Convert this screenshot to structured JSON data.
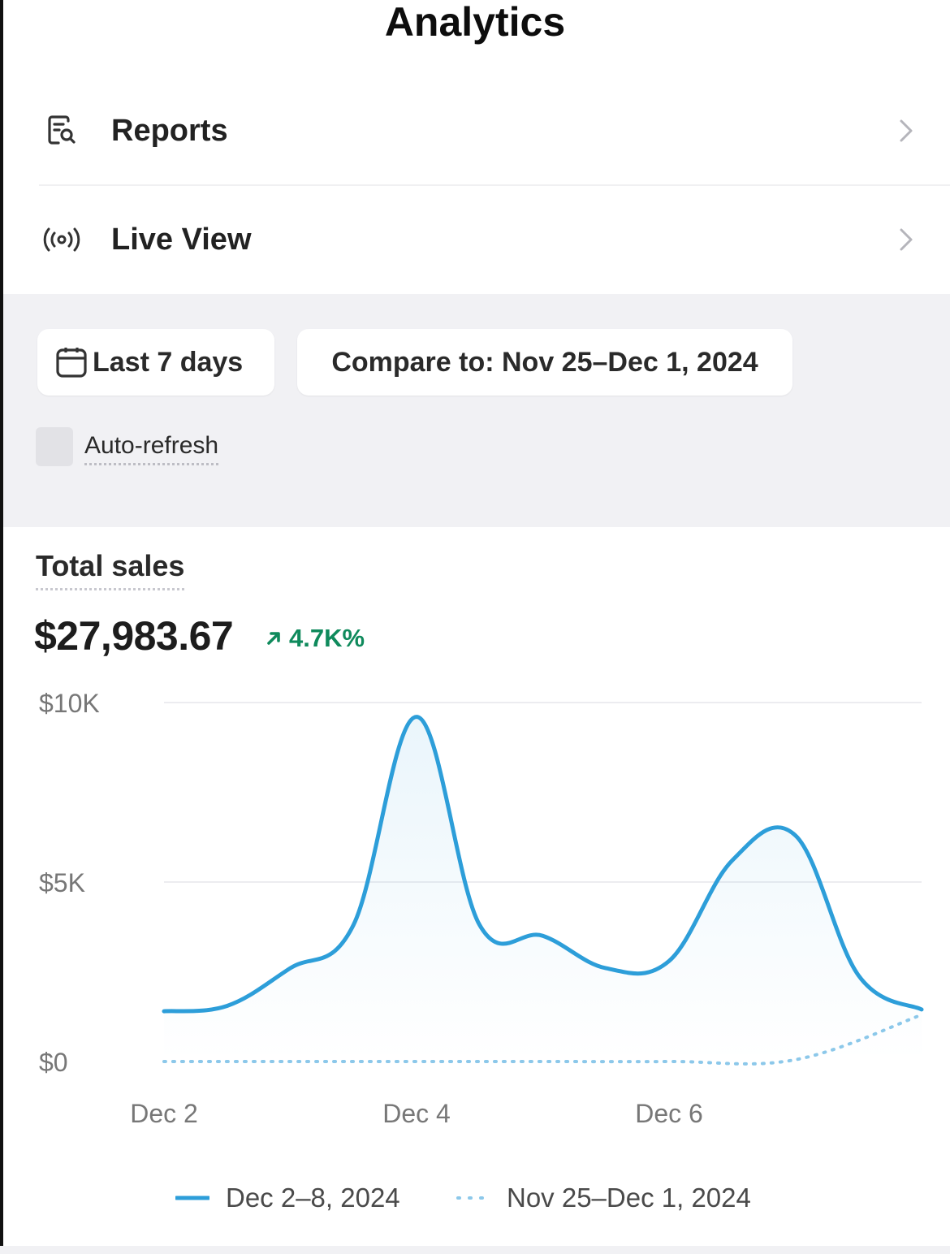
{
  "header": {
    "title": "Analytics"
  },
  "nav": [
    {
      "label": "Reports",
      "icon": "reports-search-icon"
    },
    {
      "label": "Live View",
      "icon": "broadcast-icon"
    }
  ],
  "filters": {
    "date_range_label": "Last 7 days",
    "compare_label": "Compare to: Nov 25–Dec 1, 2024",
    "auto_refresh_label": "Auto-refresh",
    "auto_refresh_checked": false
  },
  "metric": {
    "title": "Total sales",
    "value": "$27,983.67",
    "change": "4.7K%",
    "change_color": "#0f8a5c"
  },
  "chart_data": {
    "type": "line",
    "ylim": [
      0,
      10000
    ],
    "y_ticks": [
      "$10K",
      "$5K",
      "$0"
    ],
    "x_tick_labels": [
      "Dec 2",
      "Dec 4",
      "Dec 6"
    ],
    "series": [
      {
        "name": "Dec 2–8, 2024",
        "style": "solid",
        "color": "#2d9ed9",
        "x": [
          "Dec 2",
          "Dec 2.5",
          "Dec 3",
          "Dec 3.5",
          "Dec 4",
          "Dec 4.5",
          "Dec 5",
          "Dec 5.5",
          "Dec 6",
          "Dec 6.5",
          "Dec 7",
          "Dec 7.5",
          "Dec 8"
        ],
        "values": [
          1400,
          1550,
          2600,
          3800,
          9600,
          3800,
          3500,
          2600,
          2800,
          5600,
          6300,
          2400,
          1450
        ]
      },
      {
        "name": "Nov 25–Dec 1, 2024",
        "style": "dotted",
        "color": "#8cc8ea",
        "x": [
          "Dec 2",
          "Dec 3",
          "Dec 4",
          "Dec 5",
          "Dec 6",
          "Dec 7",
          "Dec 8"
        ],
        "values": [
          0,
          0,
          0,
          0,
          0,
          50,
          1300
        ]
      }
    ]
  },
  "legend": [
    {
      "label": "Dec 2–8, 2024",
      "color": "#2d9ed9",
      "style": "solid"
    },
    {
      "label": "Nov 25–Dec 1, 2024",
      "color": "#8cc8ea",
      "style": "dotted"
    }
  ]
}
